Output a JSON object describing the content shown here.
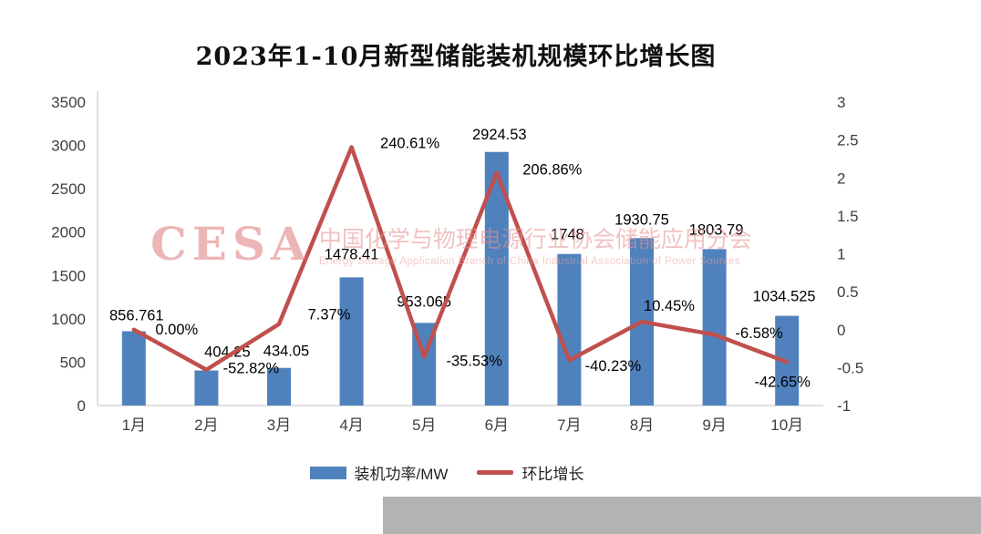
{
  "title": "2023年1-10月新型储能装机规模环比增长图",
  "watermark": {
    "logo": "CESA",
    "line_cn": "中国化学与物理电源行业协会储能应用分会",
    "line_en": "Energy Storage Application Branch of China Industrial Association of Power Sources"
  },
  "legend_items": [
    {
      "label": "装机功率/MW",
      "swatch": "bar",
      "color": "#4F81BD"
    },
    {
      "label": "环比增长",
      "swatch": "line",
      "color": "#C0504D"
    }
  ],
  "colors": {
    "bar": "#4F81BD",
    "line": "#C0504D",
    "axis": "#C2C2C2",
    "watermark_pink": "#E08C8C",
    "background": "#FFFFFF",
    "corner_gray": "#B1B4B3"
  },
  "chart_data": {
    "type": "bar",
    "subtype": "combo dual-axis: bars on left axis (MW), line on right axis (MoM growth ratio)",
    "title": "2023年1-10月新型储能装机规模环比增长图",
    "categories": [
      "1月",
      "2月",
      "3月",
      "4月",
      "5月",
      "6月",
      "7月",
      "8月",
      "9月",
      "10月"
    ],
    "series": [
      {
        "name": "装机功率/MW",
        "type": "bar",
        "axis": "left",
        "color": "#4F81BD",
        "values": [
          856.761,
          404.25,
          434.05,
          1478.41,
          953.065,
          2924.53,
          1748,
          1930.75,
          1803.79,
          1034.525
        ],
        "labels": [
          "856.761",
          "404.25",
          "434.05",
          "1478.41",
          "953.065",
          "2924.53",
          "1748",
          "1930.75",
          "1803.79",
          "1034.525"
        ]
      },
      {
        "name": "环比增长",
        "type": "line",
        "axis": "right",
        "color": "#C0504D",
        "values": [
          0.0,
          -0.5282,
          0.0737,
          2.4061,
          -0.3553,
          2.0686,
          -0.4023,
          0.1045,
          -0.0658,
          -0.4265
        ],
        "labels": [
          "0.00%",
          "-52.82%",
          "7.37%",
          "240.61%",
          "-35.53%",
          "206.86%",
          "-40.23%",
          "10.45%",
          "-6.58%",
          "-42.65%"
        ]
      }
    ],
    "left_axis": {
      "min": 0,
      "max": 3500,
      "ticks": [
        {
          "value": 0,
          "label": "0"
        },
        {
          "value": 500,
          "label": "500"
        },
        {
          "value": 1000,
          "label": "1000"
        },
        {
          "value": 1500,
          "label": "1500"
        },
        {
          "value": 2000,
          "label": "2000"
        },
        {
          "value": 2500,
          "label": "2500"
        },
        {
          "value": 3000,
          "label": "3000"
        },
        {
          "value": 3500,
          "label": "3500"
        }
      ]
    },
    "right_axis": {
      "min": -1,
      "max": 3,
      "ticks": [
        {
          "value": -1,
          "label": "-1"
        },
        {
          "value": -0.5,
          "label": "-0.5"
        },
        {
          "value": 0,
          "label": "0"
        },
        {
          "value": 0.5,
          "label": "0.5"
        },
        {
          "value": 1,
          "label": "1"
        },
        {
          "value": 1.5,
          "label": "1.5"
        },
        {
          "value": 2,
          "label": "2"
        },
        {
          "value": 2.5,
          "label": "2.5"
        },
        {
          "value": 3,
          "label": "3"
        }
      ]
    },
    "grid": false,
    "legend_position": "bottom"
  }
}
